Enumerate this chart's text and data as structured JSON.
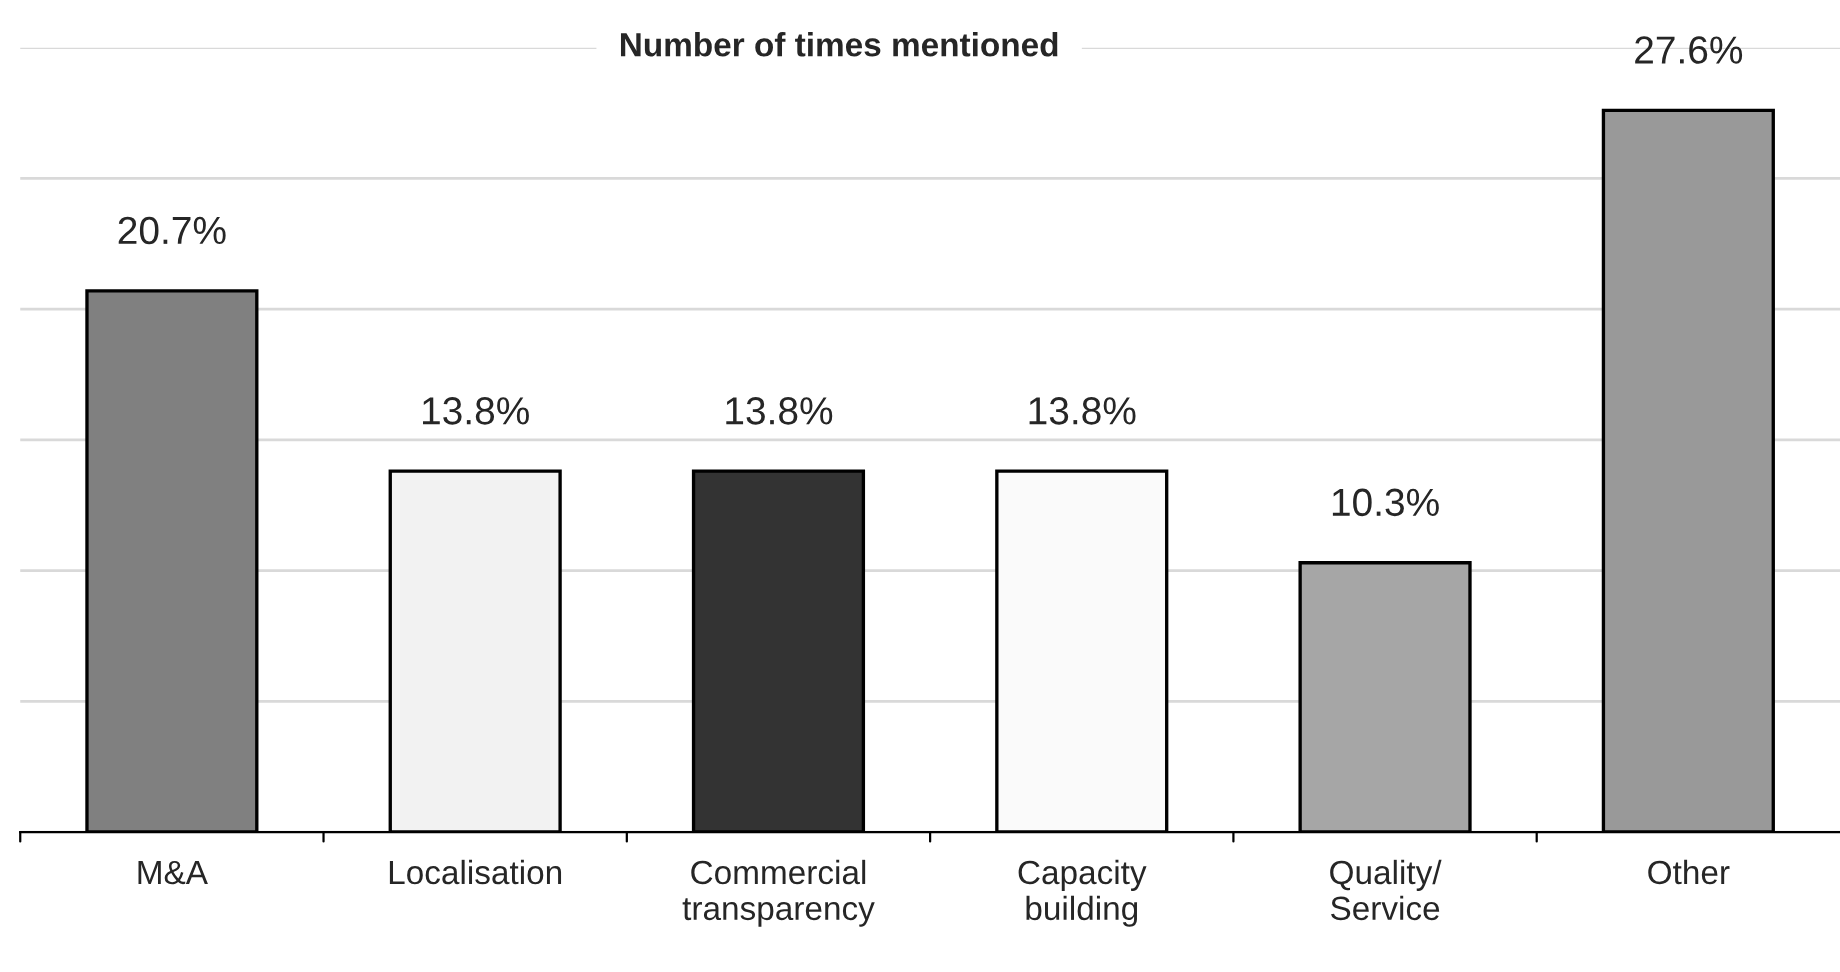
{
  "chart_data": {
    "type": "bar",
    "title": "Number of times mentioned",
    "categories": [
      "M&A",
      "Localisation",
      "Commercial\ntransparency",
      "Capacity\nbuilding",
      "Quality/\nService",
      "Other"
    ],
    "values": [
      20.7,
      13.8,
      13.8,
      13.8,
      10.3,
      27.6
    ],
    "value_labels": [
      "20.7%",
      "13.8%",
      "13.8%",
      "13.8%",
      "10.3%",
      "27.6%"
    ],
    "colors": [
      "#808080",
      "#f2f2f2",
      "#333333",
      "#fafafa",
      "#a6a6a6",
      "#999999"
    ],
    "ylim": [
      0,
      30
    ],
    "yticks": [
      {
        "value": 0,
        "label": null
      },
      {
        "value": 5,
        "label": null
      },
      {
        "value": 10,
        "label": null
      },
      {
        "value": 15,
        "label": null
      },
      {
        "value": 20,
        "label": null
      },
      {
        "value": 25,
        "label": null
      },
      {
        "value": 30,
        "label": null
      }
    ],
    "grid": "y",
    "tick_labels": "x"
  }
}
